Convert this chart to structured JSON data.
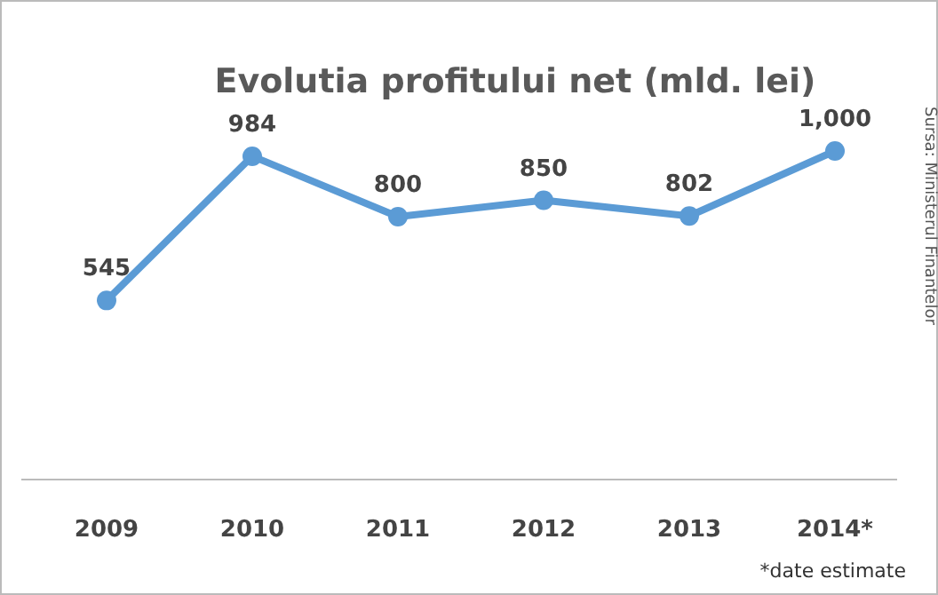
{
  "chart_data": {
    "type": "line",
    "title": "Evolutia profitului net (mld. lei)",
    "categories": [
      "2009",
      "2010",
      "2011",
      "2012",
      "2013",
      "2014*"
    ],
    "series": [
      {
        "color": "#5b9bd5",
        "values": [
          545,
          984,
          800,
          850,
          802,
          1000
        ],
        "value_labels": [
          "545",
          "984",
          "800",
          "850",
          "802",
          "1,000"
        ]
      }
    ],
    "data_labels": true,
    "marker": "circle",
    "line_style": "solid",
    "annotations": [
      "Sursa: Ministerul Finantelor",
      "*date estimate"
    ]
  }
}
